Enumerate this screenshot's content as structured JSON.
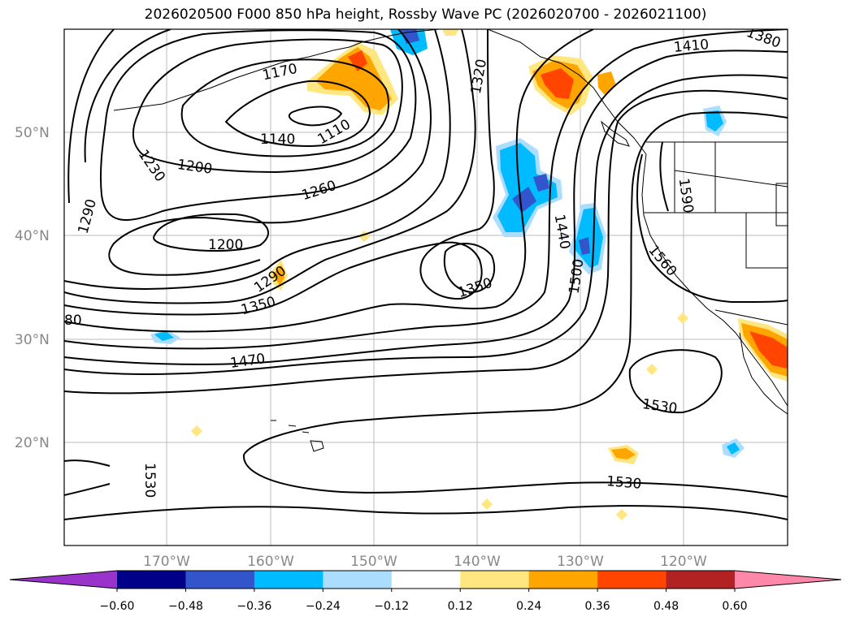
{
  "title": "2026020500 F000 850 hPa height, Rossby Wave PC (2026020700 - 2026021100)",
  "map": {
    "lon_labels": [
      "170°W",
      "160°W",
      "150°W",
      "140°W",
      "130°W",
      "120°W"
    ],
    "lat_labels": [
      "50°N",
      "40°N",
      "30°N",
      "20°N"
    ],
    "contour_labels": [
      "1170",
      "1110",
      "1140",
      "1200",
      "1230",
      "1260",
      "1290",
      "1200",
      "1290",
      "1350",
      "80",
      "1470",
      "1320",
      "1350",
      "1440",
      "1500",
      "1410",
      "1380",
      "1590",
      "1560",
      "1530",
      "1530",
      "1530"
    ]
  },
  "colorbar": {
    "ticks": [
      "−0.60",
      "−0.48",
      "−0.36",
      "−0.24",
      "−0.12",
      "0.12",
      "0.24",
      "0.36",
      "0.48",
      "0.60"
    ],
    "colors": [
      "#9933cc",
      "#000088",
      "#3355cc",
      "#00bbff",
      "#aaddff",
      "#ffffff",
      "#ffe680",
      "#ffa500",
      "#ff4500",
      "#b22222",
      "#ff88aa"
    ]
  }
}
